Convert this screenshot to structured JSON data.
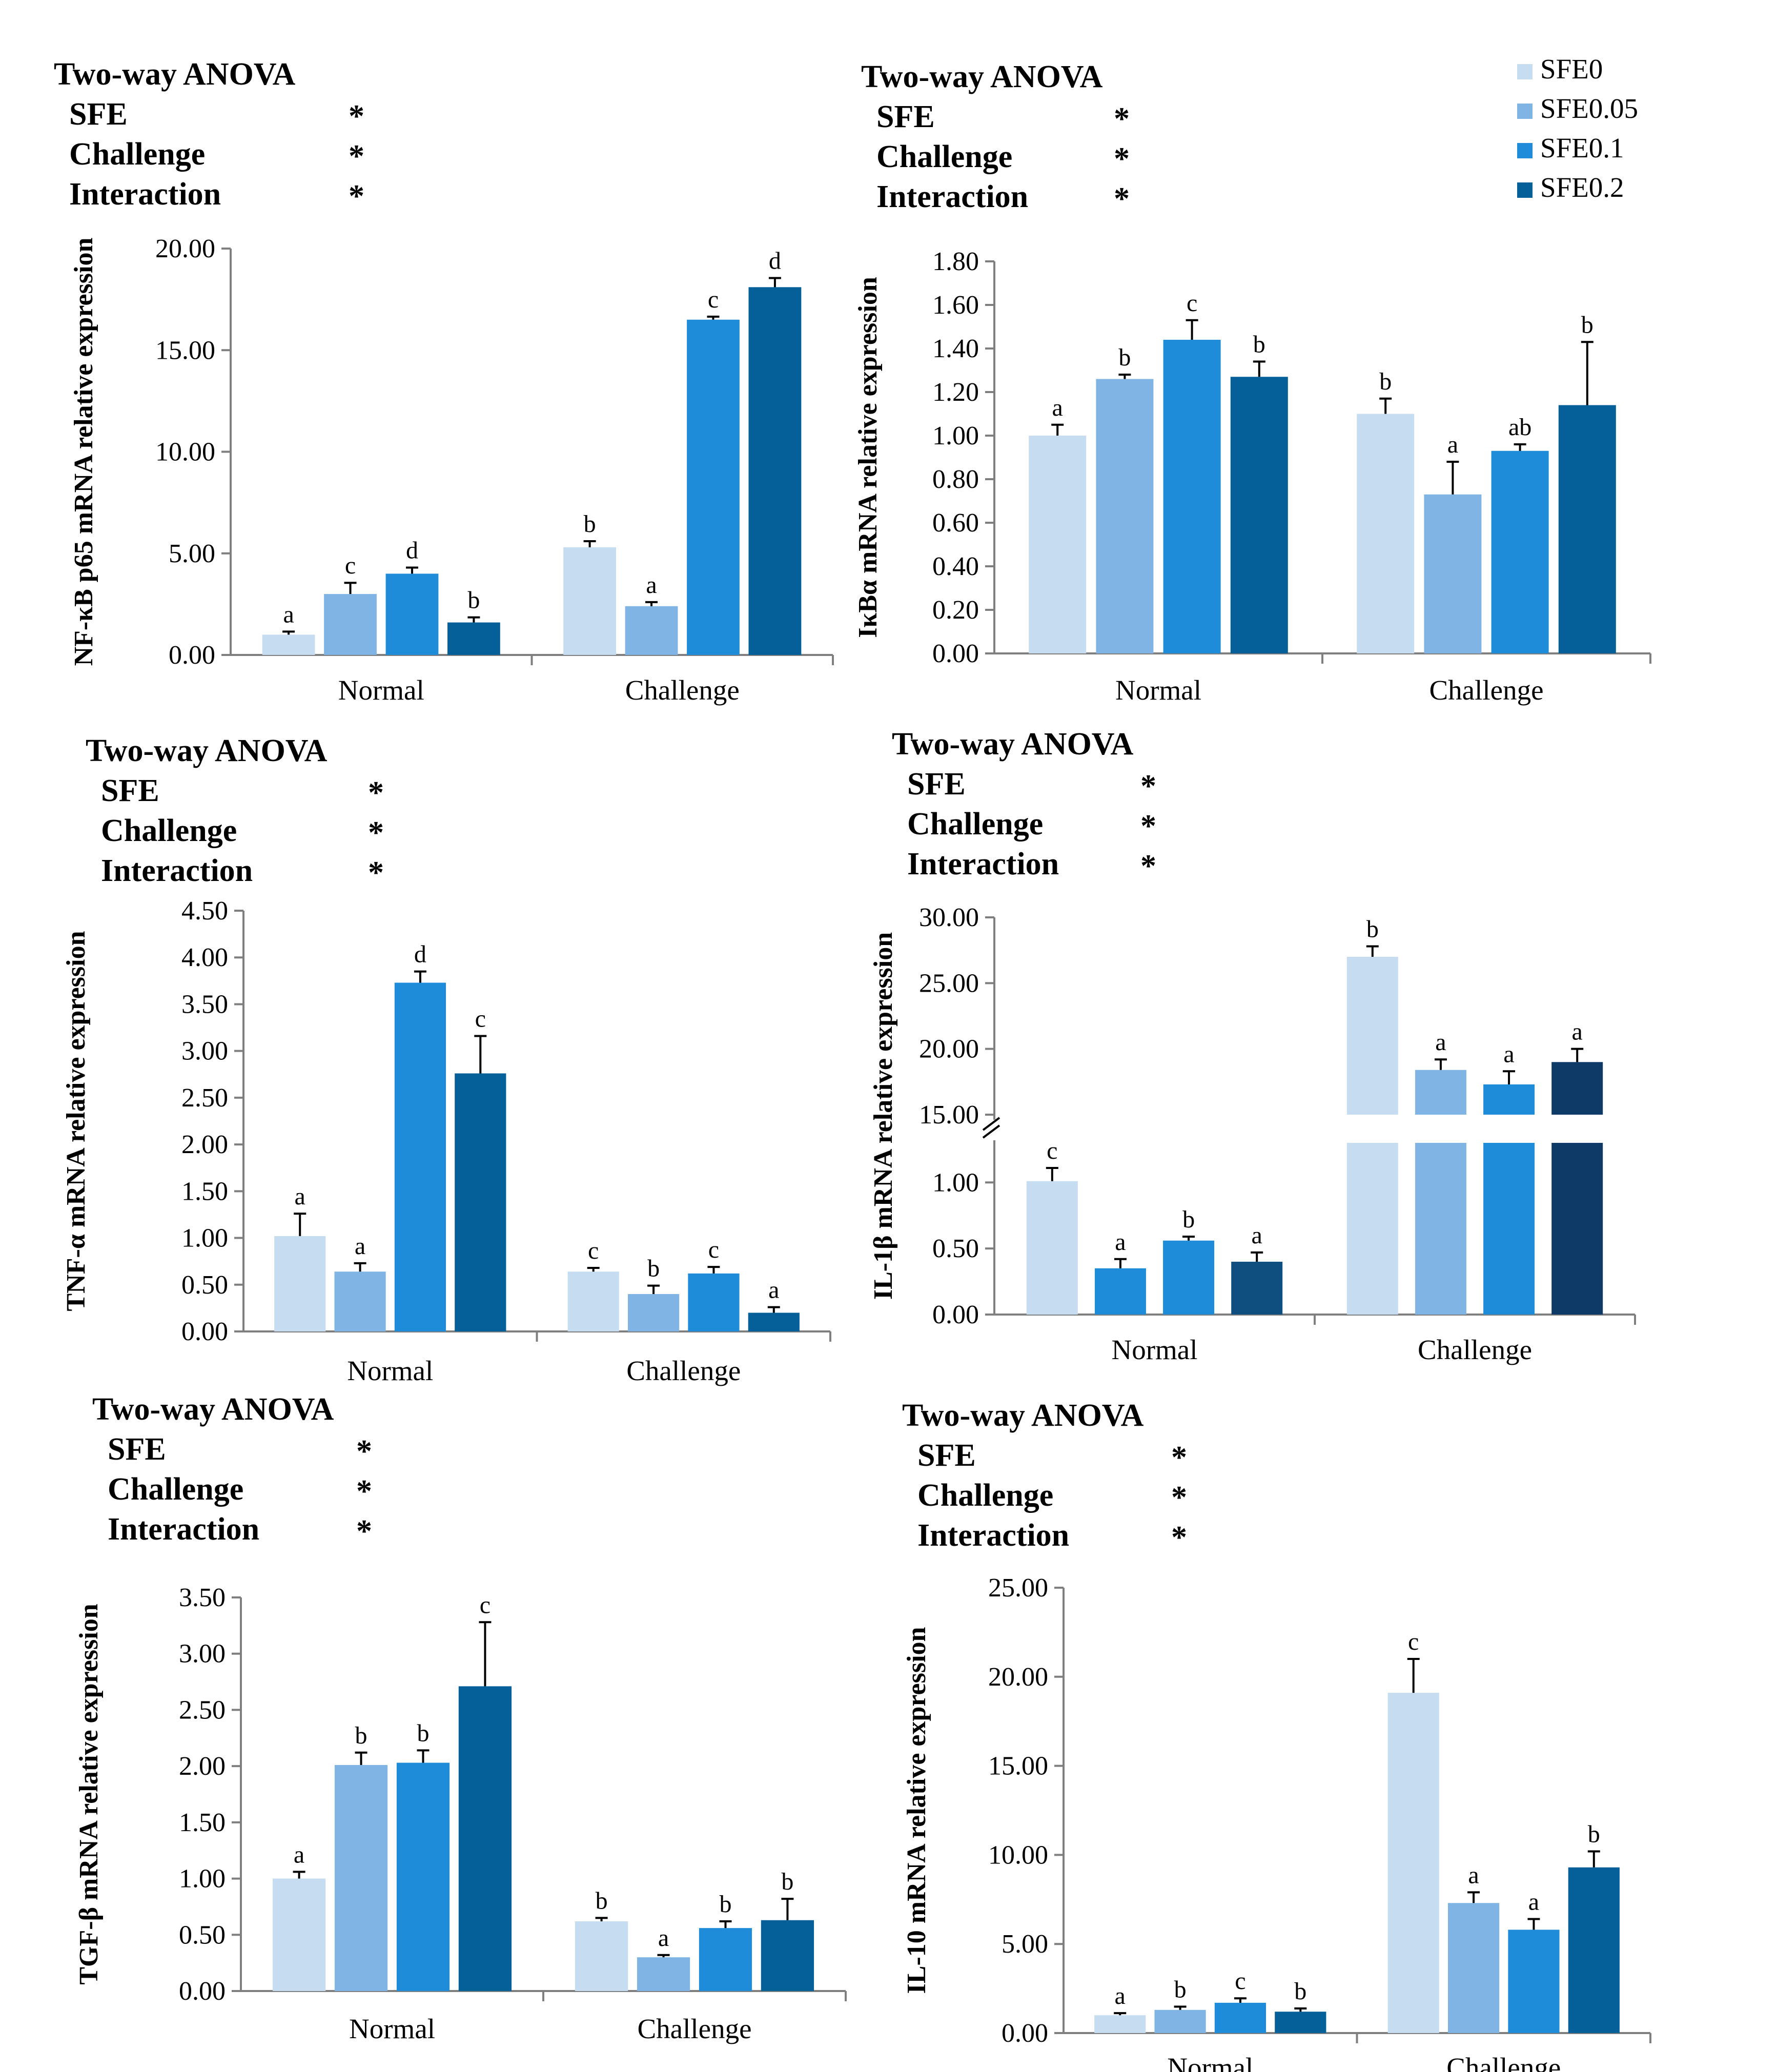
{
  "legend": [
    {
      "label": "SFE0",
      "color": "#C5DCF1"
    },
    {
      "label": "SFE0.05",
      "color": "#7FB4E5"
    },
    {
      "label": "SFE0.1",
      "color": "#1F8CD9"
    },
    {
      "label": "SFE0.2",
      "color": "#05609A"
    }
  ],
  "anova_labels": {
    "title": "Two-way ANOVA",
    "rows": [
      "SFE",
      "Challenge",
      "Interaction"
    ],
    "marks": [
      "*",
      "*",
      "*"
    ]
  },
  "chart_data": [
    {
      "type": "bar",
      "id": "nfkb",
      "ylabel": "NF-κB p65 mRNA relative expression",
      "categories": [
        "Normal",
        "Challenge"
      ],
      "ylim": [
        0,
        20
      ],
      "ticks": [
        "0.00",
        "5.00",
        "10.00",
        "15.00",
        "20.00"
      ],
      "series": [
        {
          "name": "SFE0",
          "values": [
            1.0,
            5.3
          ],
          "errors": [
            0.15,
            0.3
          ],
          "letters": [
            "a",
            "b"
          ]
        },
        {
          "name": "SFE0.05",
          "values": [
            3.0,
            2.4
          ],
          "errors": [
            0.55,
            0.2
          ],
          "letters": [
            "c",
            "a"
          ]
        },
        {
          "name": "SFE0.1",
          "values": [
            4.0,
            16.5
          ],
          "errors": [
            0.3,
            0.15
          ],
          "letters": [
            "d",
            "c"
          ]
        },
        {
          "name": "SFE0.2",
          "values": [
            1.6,
            18.1
          ],
          "errors": [
            0.25,
            0.45
          ],
          "letters": [
            "b",
            "d"
          ]
        }
      ]
    },
    {
      "type": "bar",
      "id": "ikba",
      "ylabel": "IκBα mRNA relative expression",
      "categories": [
        "Normal",
        "Challenge"
      ],
      "ylim": [
        0,
        1.8
      ],
      "ticks": [
        "0.00",
        "0.20",
        "0.40",
        "0.60",
        "0.80",
        "1.00",
        "1.20",
        "1.40",
        "1.60",
        "1.80"
      ],
      "series": [
        {
          "name": "SFE0",
          "values": [
            1.0,
            1.1
          ],
          "errors": [
            0.05,
            0.07
          ],
          "letters": [
            "a",
            "b"
          ]
        },
        {
          "name": "SFE0.05",
          "values": [
            1.26,
            0.73
          ],
          "errors": [
            0.02,
            0.15
          ],
          "letters": [
            "b",
            "a"
          ]
        },
        {
          "name": "SFE0.1",
          "values": [
            1.44,
            0.93
          ],
          "errors": [
            0.09,
            0.03
          ],
          "letters": [
            "c",
            "ab"
          ]
        },
        {
          "name": "SFE0.2",
          "values": [
            1.27,
            1.14
          ],
          "errors": [
            0.07,
            0.29
          ],
          "letters": [
            "b",
            "b"
          ]
        }
      ]
    },
    {
      "type": "bar",
      "id": "tnfa",
      "ylabel": "TNF-α mRNA relative expression",
      "categories": [
        "Normal",
        "Challenge"
      ],
      "ylim": [
        0,
        4.5
      ],
      "ticks": [
        "0.00",
        "0.50",
        "1.00",
        "1.50",
        "2.00",
        "2.50",
        "3.00",
        "3.50",
        "4.00",
        "4.50"
      ],
      "series": [
        {
          "name": "SFE0",
          "values": [
            1.02,
            0.64
          ],
          "errors": [
            0.24,
            0.04
          ],
          "letters": [
            "a",
            "c"
          ]
        },
        {
          "name": "SFE0.05",
          "values": [
            0.64,
            0.4
          ],
          "errors": [
            0.09,
            0.09
          ],
          "letters": [
            "a",
            "b"
          ]
        },
        {
          "name": "SFE0.1",
          "values": [
            3.73,
            0.62
          ],
          "errors": [
            0.12,
            0.07
          ],
          "letters": [
            "d",
            "c"
          ]
        },
        {
          "name": "SFE0.2",
          "values": [
            2.76,
            0.2
          ],
          "errors": [
            0.4,
            0.06
          ],
          "letters": [
            "c",
            "a"
          ]
        }
      ]
    },
    {
      "type": "bar",
      "id": "il1b",
      "ylabel": "IL-1β mRNA relative expression",
      "categories": [
        "Normal",
        "Challenge"
      ],
      "broken_axis": true,
      "lower_ylim": [
        0,
        1.3
      ],
      "upper_ylim": [
        15,
        30
      ],
      "lower_ticks": [
        "0.00",
        "0.50",
        "1.00"
      ],
      "upper_ticks": [
        "15.00",
        "20.00",
        "25.00",
        "30.00"
      ],
      "series": [
        {
          "name": "SFE0",
          "values": [
            1.01,
            27.0
          ],
          "errors": [
            0.1,
            0.8
          ],
          "letters": [
            "c",
            "b"
          ],
          "colors": [
            "#C5DCF1",
            "#C5DCF1"
          ]
        },
        {
          "name": "SFE0.05",
          "values": [
            0.35,
            18.4
          ],
          "errors": [
            0.07,
            0.8
          ],
          "letters": [
            "a",
            "a"
          ],
          "colors": [
            "#1F8CD9",
            "#7FB4E5"
          ]
        },
        {
          "name": "SFE0.1",
          "values": [
            0.56,
            17.3
          ],
          "errors": [
            0.03,
            1.0
          ],
          "letters": [
            "b",
            "a"
          ],
          "colors": [
            "#1F8CD9",
            "#1F8CD9"
          ]
        },
        {
          "name": "SFE0.2",
          "values": [
            0.4,
            19.0
          ],
          "errors": [
            0.07,
            1.0
          ],
          "letters": [
            "a",
            "a"
          ],
          "colors": [
            "#0F4F80",
            "#0D3A66"
          ]
        }
      ]
    },
    {
      "type": "bar",
      "id": "tgfb",
      "ylabel": "TGF-β mRNA relative expression",
      "categories": [
        "Normal",
        "Challenge"
      ],
      "ylim": [
        0,
        3.5
      ],
      "ticks": [
        "0.00",
        "0.50",
        "1.00",
        "1.50",
        "2.00",
        "2.50",
        "3.00",
        "3.50"
      ],
      "series": [
        {
          "name": "SFE0",
          "values": [
            1.0,
            0.62
          ],
          "errors": [
            0.06,
            0.03
          ],
          "letters": [
            "a",
            "b"
          ]
        },
        {
          "name": "SFE0.05",
          "values": [
            2.01,
            0.3
          ],
          "errors": [
            0.11,
            0.02
          ],
          "letters": [
            "b",
            "a"
          ]
        },
        {
          "name": "SFE0.1",
          "values": [
            2.03,
            0.56
          ],
          "errors": [
            0.11,
            0.06
          ],
          "letters": [
            "b",
            "b"
          ]
        },
        {
          "name": "SFE0.2",
          "values": [
            2.71,
            0.63
          ],
          "errors": [
            0.57,
            0.19
          ],
          "letters": [
            "c",
            "b"
          ]
        }
      ]
    },
    {
      "type": "bar",
      "id": "il10",
      "ylabel": "IL-10 mRNA relative expression",
      "categories": [
        "Normal",
        "Challenge"
      ],
      "ylim": [
        0,
        25
      ],
      "ticks": [
        "0.00",
        "5.00",
        "10.00",
        "15.00",
        "20.00",
        "25.00"
      ],
      "series": [
        {
          "name": "SFE0",
          "values": [
            1.0,
            19.1
          ],
          "errors": [
            0.12,
            1.9
          ],
          "letters": [
            "a",
            "c"
          ]
        },
        {
          "name": "SFE0.05",
          "values": [
            1.3,
            7.3
          ],
          "errors": [
            0.18,
            0.6
          ],
          "letters": [
            "b",
            "a"
          ]
        },
        {
          "name": "SFE0.1",
          "values": [
            1.7,
            5.8
          ],
          "errors": [
            0.25,
            0.6
          ],
          "letters": [
            "c",
            "a"
          ]
        },
        {
          "name": "SFE0.2",
          "values": [
            1.2,
            9.3
          ],
          "errors": [
            0.18,
            0.9
          ],
          "letters": [
            "b",
            "b"
          ]
        }
      ]
    }
  ]
}
